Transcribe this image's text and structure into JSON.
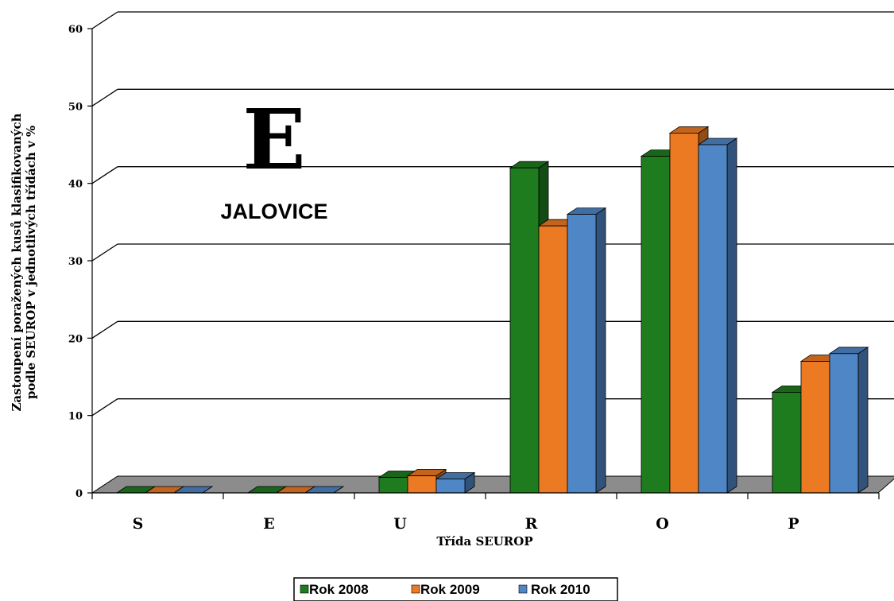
{
  "chart_data": {
    "type": "bar",
    "big_letter": "E",
    "subtitle": "JALOVICE",
    "categories": [
      "S",
      "E",
      "U",
      "R",
      "O",
      "P"
    ],
    "series": [
      {
        "name": "Rok 2008",
        "color": "#1e7b1e",
        "values": [
          0,
          0,
          2,
          42,
          43.5,
          13
        ]
      },
      {
        "name": "Rok 2009",
        "color": "#ec7a23",
        "values": [
          0,
          0,
          2.2,
          34.5,
          46.5,
          17
        ]
      },
      {
        "name": "Rok 2010",
        "color": "#4f86c6",
        "values": [
          0,
          0,
          1.8,
          36,
          45,
          18
        ]
      }
    ],
    "ylabel_line1": "Zastoupení poražených kusů klasifikovaných",
    "ylabel_line2": "podle SEUROP v jednotlivých třídách v %",
    "xlabel": "Třída SEUROP",
    "ylim": [
      0,
      60
    ],
    "yticks": [
      0,
      10,
      20,
      30,
      40,
      50,
      60
    ],
    "grid": true,
    "legend_position": "bottom",
    "three_d": true
  }
}
